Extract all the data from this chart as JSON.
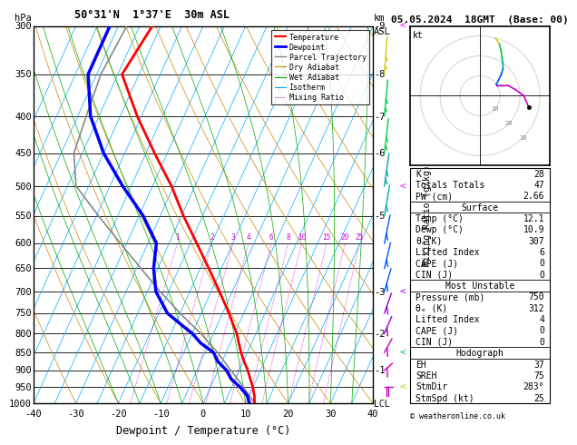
{
  "title_left": "50°31'N  1°37'E  30m ASL",
  "title_right": "05.05.2024  18GMT  (Base: 00)",
  "xlabel": "Dewpoint / Temperature (°C)",
  "legend_entries": [
    "Temperature",
    "Dewpoint",
    "Parcel Trajectory",
    "Dry Adiabat",
    "Wet Adiabat",
    "Isotherm",
    "Mixing Ratio"
  ],
  "legend_colors": [
    "#ff0000",
    "#0000ff",
    "#888888",
    "#cc8800",
    "#00aa00",
    "#00aaff",
    "#cc00cc"
  ],
  "legend_styles": [
    "-",
    "-",
    "-",
    "-",
    "-",
    "-",
    ":"
  ],
  "legend_widths": [
    1.5,
    2.0,
    1.0,
    0.8,
    0.8,
    0.8,
    0.8
  ],
  "pressure_ticks": [
    300,
    350,
    400,
    450,
    500,
    550,
    600,
    650,
    700,
    750,
    800,
    850,
    900,
    950,
    1000
  ],
  "temp_profile_p": [
    1000,
    975,
    950,
    925,
    900,
    875,
    850,
    825,
    800,
    775,
    750,
    700,
    650,
    600,
    550,
    500,
    450,
    400,
    350,
    300
  ],
  "temp_profile_t": [
    12.1,
    11.2,
    10.0,
    8.5,
    7.0,
    5.2,
    3.5,
    2.0,
    0.5,
    -1.5,
    -3.5,
    -8.0,
    -13.0,
    -18.5,
    -24.5,
    -30.5,
    -38.0,
    -46.0,
    -54.0,
    -52.0
  ],
  "dewp_profile_p": [
    1000,
    975,
    950,
    925,
    900,
    875,
    850,
    825,
    800,
    775,
    750,
    700,
    650,
    600,
    550,
    500,
    450,
    400,
    350,
    300
  ],
  "dewp_profile_t": [
    10.9,
    9.5,
    7.0,
    4.0,
    2.0,
    -1.0,
    -3.0,
    -7.0,
    -10.0,
    -14.0,
    -18.0,
    -23.0,
    -26.0,
    -28.0,
    -34.0,
    -42.0,
    -50.0,
    -57.0,
    -62.0,
    -62.0
  ],
  "parcel_p": [
    1000,
    975,
    950,
    925,
    900,
    875,
    850,
    825,
    800,
    775,
    750,
    700,
    650,
    600,
    550,
    500,
    450,
    400,
    350,
    300
  ],
  "parcel_t": [
    12.1,
    10.0,
    7.8,
    5.5,
    3.0,
    0.5,
    -2.0,
    -5.0,
    -8.0,
    -11.5,
    -15.0,
    -22.0,
    -29.0,
    -36.5,
    -44.5,
    -53.0,
    -57.0,
    -58.0,
    -59.0,
    -58.0
  ],
  "xmin": -40,
  "xmax": 40,
  "skew": 45.0,
  "mixing_ratio_vals": [
    1,
    2,
    3,
    4,
    6,
    8,
    10,
    15,
    20,
    25
  ],
  "km_labels": {
    "300": "9",
    "350": "8",
    "400": "7",
    "450": "6",
    "550": "5",
    "700": "3",
    "800": "2",
    "900": "1"
  },
  "info_box": {
    "K": "28",
    "Totals Totals": "47",
    "PW (cm)": "2.66",
    "Surface_Temp": "12.1",
    "Surface_Dewp": "10.9",
    "Surface_theta": "307",
    "Surface_LI": "6",
    "Surface_CAPE": "0",
    "Surface_CIN": "0",
    "MU_Pressure": "750",
    "MU_theta": "312",
    "MU_LI": "4",
    "MU_CAPE": "0",
    "MU_CIN": "0",
    "EH": "37",
    "SREH": "75",
    "StmDir": "283°",
    "StmSpd": "25"
  },
  "wind_barbs_p": [
    1000,
    950,
    900,
    850,
    800,
    750,
    700,
    650,
    600,
    550,
    500,
    450,
    400,
    350,
    300
  ],
  "wind_barbs_dir": [
    283,
    270,
    260,
    250,
    245,
    240,
    235,
    230,
    225,
    220,
    215,
    210,
    205,
    200,
    195
  ],
  "wind_barbs_spd": [
    25,
    22,
    18,
    15,
    12,
    10,
    10,
    12,
    15,
    18,
    20,
    22,
    25,
    28,
    30
  ],
  "barb_colors": [
    "#cc00cc",
    "#cc00cc",
    "#cc00cc",
    "#cc00cc",
    "#9900cc",
    "#9900cc",
    "#0055ff",
    "#0055ff",
    "#0055ff",
    "#00aaaa",
    "#00aaaa",
    "#00cc44",
    "#00cc44",
    "#cccc00",
    "#cccc00"
  ],
  "dry_adiabat_color": "#cc8800",
  "wet_adiabat_color": "#00aa00",
  "isotherm_color": "#00aaff",
  "mixing_ratio_color": "#cc00cc",
  "temp_color": "#ff0000",
  "dewp_color": "#0000ff",
  "parcel_color": "#888888",
  "bg_color": "#ffffff",
  "copyright": "© weatheronline.co.uk"
}
